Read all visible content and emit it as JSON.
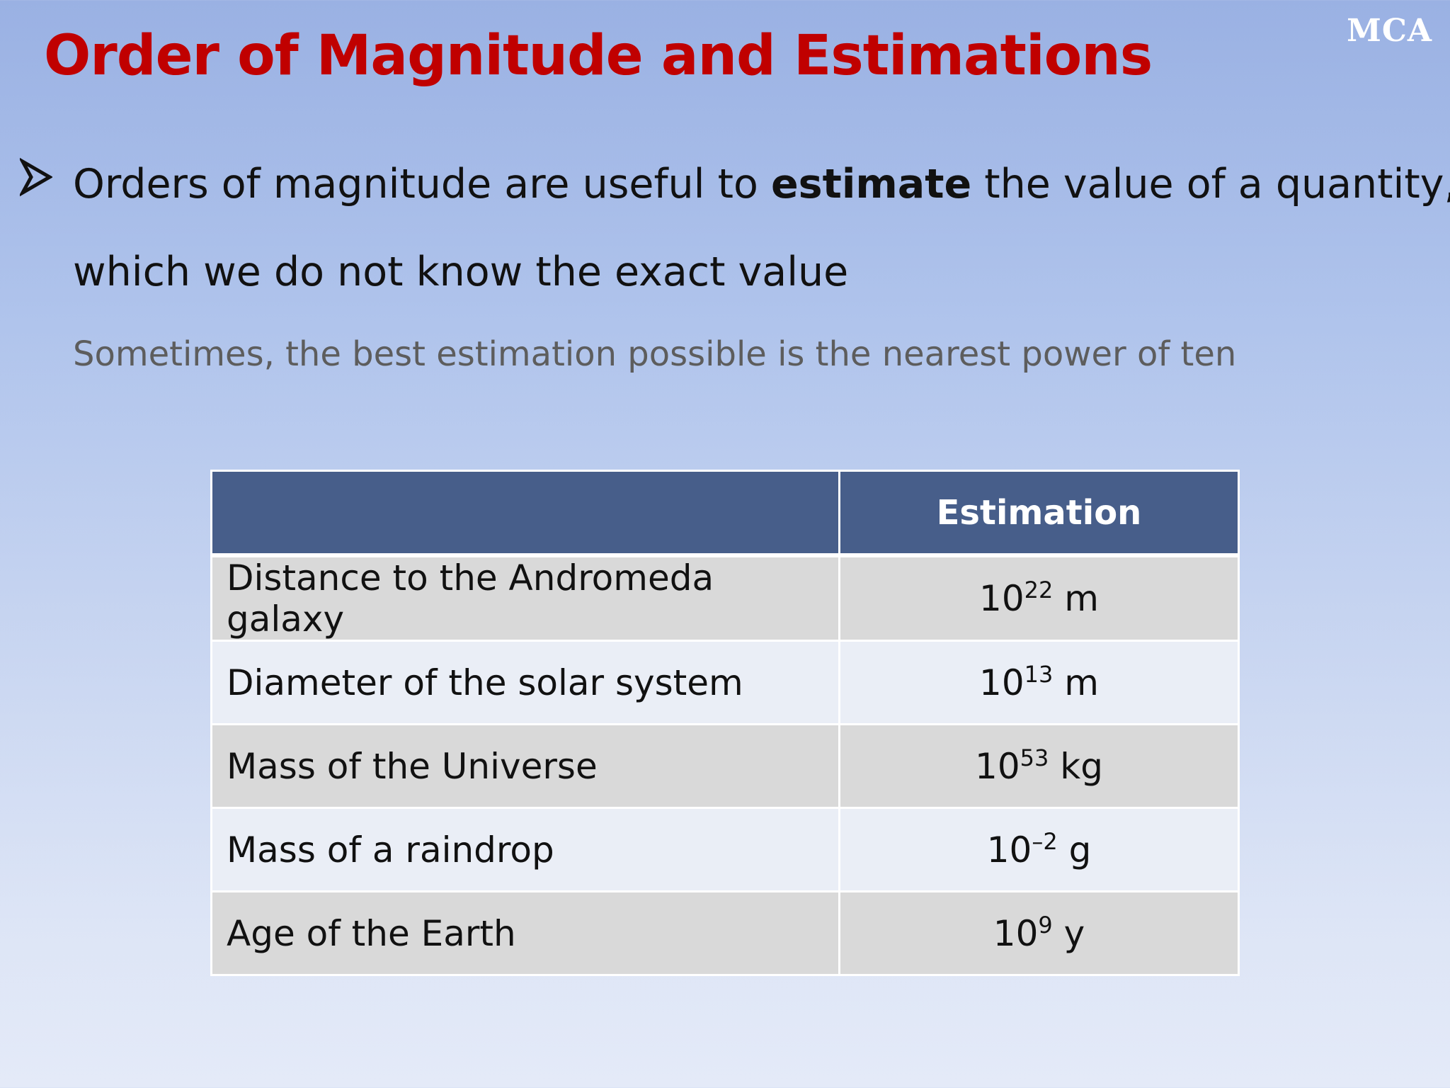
{
  "watermark": "MCA",
  "title": "Order of Magnitude and Estimations",
  "bullet": {
    "icon": "arrowhead-bullet-icon",
    "text_before": "Orders of magnitude are useful to ",
    "emphasis": "estimate",
    "text_after": " the value of a quantity,",
    "line2": "which we do not know the exact value"
  },
  "subnote": "Sometimes, the best estimation possible is the nearest power of ten",
  "table": {
    "header": [
      "",
      "Estimation"
    ],
    "rows": [
      {
        "item": "Distance to the Andromeda galaxy",
        "base": "10",
        "exp": "22",
        "unit": " m"
      },
      {
        "item": "Diameter of the solar system",
        "base": "10",
        "exp": "13",
        "unit": " m"
      },
      {
        "item": "Mass of the Universe",
        "base": "10",
        "exp": "53",
        "unit": " kg"
      },
      {
        "item": "Mass of a raindrop",
        "base": "10",
        "exp": "–2",
        "unit": " g"
      },
      {
        "item": "Age of the Earth",
        "base": "10",
        "exp": "9",
        "unit": " y"
      }
    ]
  },
  "colors": {
    "title": "#c00000",
    "table_header": "#475e8a",
    "row_odd": "#d9d9d9",
    "row_even": "#eaeef6",
    "subnote": "#5d5d5d"
  }
}
